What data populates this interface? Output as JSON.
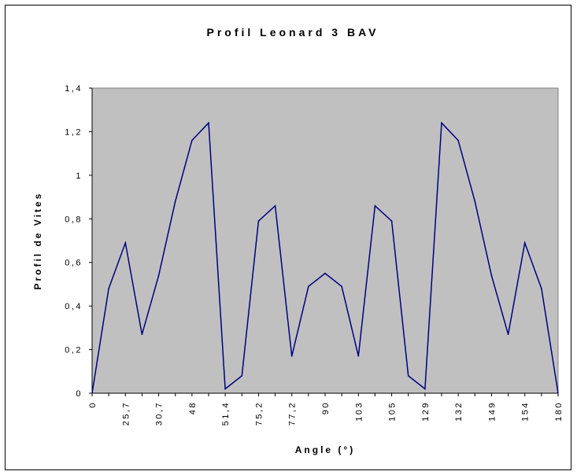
{
  "chart_data": {
    "type": "line",
    "title": "Profil Leonard 3 BAV",
    "xlabel": "Angle (°)",
    "ylabel": "Profil de Vites",
    "ylim": [
      0,
      1.4
    ],
    "y_ticks": [
      "0",
      "0,2",
      "0,4",
      "0,6",
      "0,8",
      "1",
      "1,2",
      "1,4"
    ],
    "x_tick_labels": [
      "0",
      "25,7",
      "30,7",
      "48",
      "51,4",
      "75,2",
      "77,2",
      "90",
      "103",
      "105",
      "129",
      "132",
      "149",
      "154",
      "180"
    ],
    "plot_background": "#c0c0c0",
    "line_color": "#000080",
    "grid": false,
    "legend": "none",
    "series": [
      {
        "values": [
          0,
          0.48,
          0.69,
          0.27,
          0.54,
          0.88,
          1.16,
          1.24,
          0.02,
          0.08,
          0.79,
          0.86,
          0.17,
          0.49,
          0.55,
          0.49,
          0.17,
          0.86,
          0.79,
          0.08,
          0.02,
          1.24,
          1.16,
          0.88,
          0.54,
          0.27,
          0.69,
          0.48,
          0
        ]
      }
    ]
  }
}
